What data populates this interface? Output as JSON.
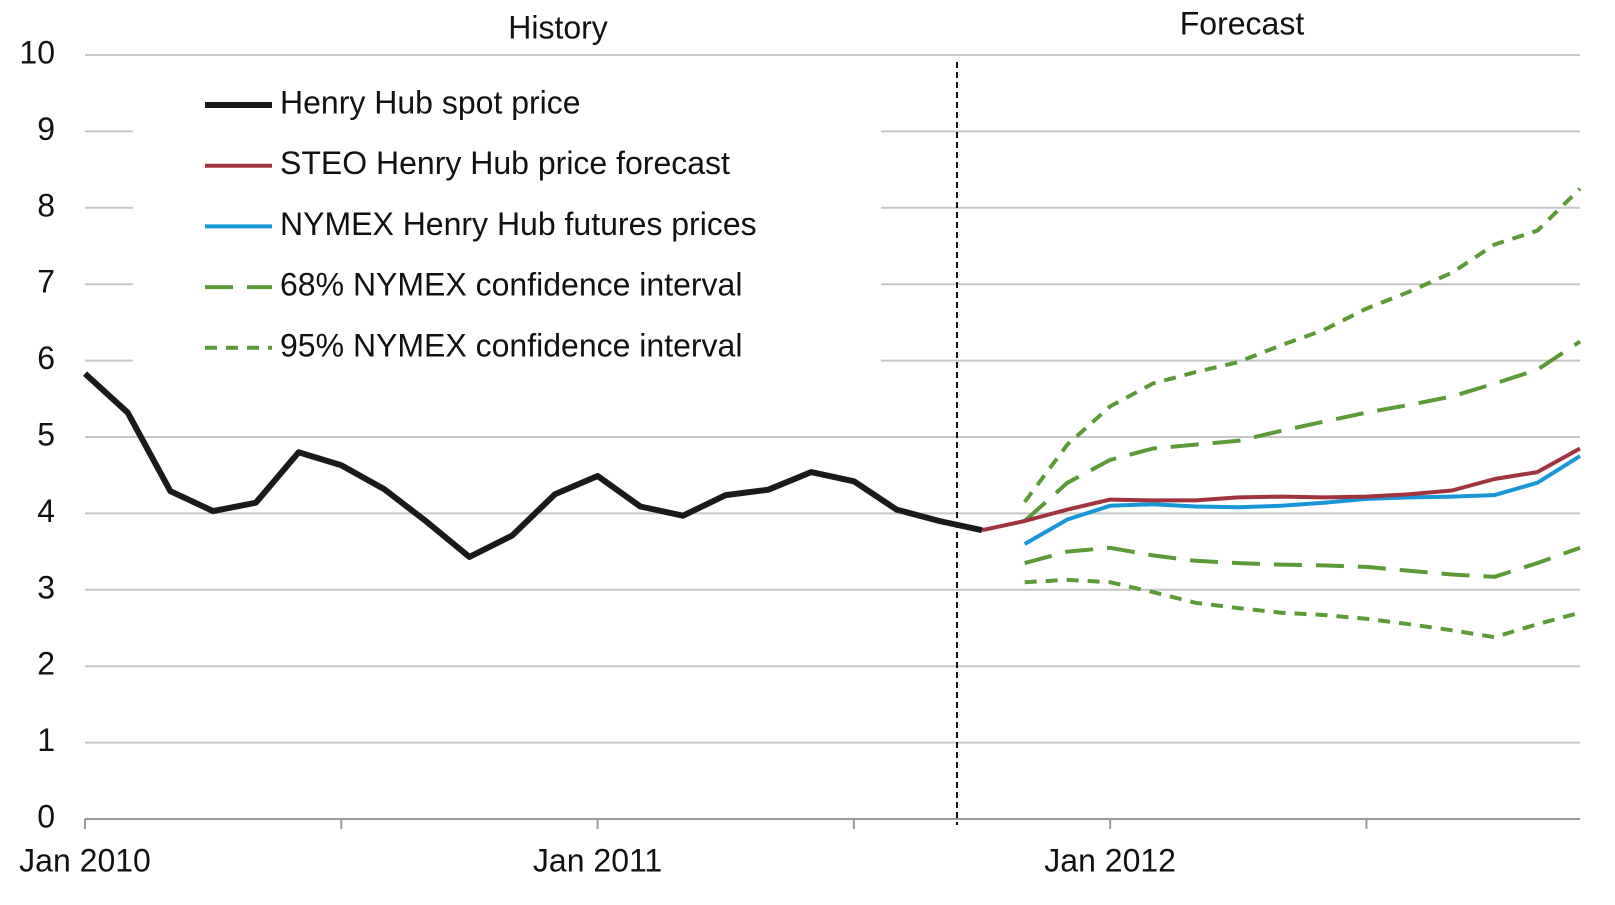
{
  "chart_data": {
    "type": "line",
    "annotations": [
      "History",
      "Forecast"
    ],
    "xlim": [
      "2010-01",
      "2012-12"
    ],
    "xticks": [
      {
        "value": "2010-01",
        "label": "Jan 2010"
      },
      {
        "value": "2011-01",
        "label": "Jan 2011"
      },
      {
        "value": "2012-01",
        "label": "Jan 2012"
      }
    ],
    "xticks_minor": [
      "2010-07",
      "2011-07",
      "2012-07"
    ],
    "ylim": [
      0,
      10
    ],
    "yticks": [
      0,
      1,
      2,
      3,
      4,
      5,
      6,
      7,
      8,
      9,
      10
    ],
    "grid": true,
    "legend": "upper left",
    "series": [
      {
        "name": "Henry Hub spot price",
        "color": "#1a1a1a",
        "dash": "solid",
        "x": [
          "2010-01",
          "2010-02",
          "2010-03",
          "2010-04",
          "2010-05",
          "2010-06",
          "2010-07",
          "2010-08",
          "2010-09",
          "2010-10",
          "2010-11",
          "2010-12",
          "2011-01",
          "2011-02",
          "2011-03",
          "2011-04",
          "2011-05",
          "2011-06",
          "2011-07",
          "2011-08",
          "2011-09",
          "2011-10"
        ],
        "values": [
          5.83,
          5.32,
          4.29,
          4.03,
          4.14,
          4.8,
          4.63,
          4.32,
          3.89,
          3.43,
          3.71,
          4.25,
          4.49,
          4.09,
          3.97,
          4.24,
          4.31,
          4.54,
          4.42,
          4.05,
          3.9,
          3.78
        ]
      },
      {
        "name": "STEO Henry Hub price forecast",
        "color": "#a0333d",
        "dash": "solid",
        "x": [
          "2011-10",
          "2011-11",
          "2011-12",
          "2012-01",
          "2012-02",
          "2012-03",
          "2012-04",
          "2012-05",
          "2012-06",
          "2012-07",
          "2012-08",
          "2012-09",
          "2012-10",
          "2012-11",
          "2012-12"
        ],
        "values": [
          3.78,
          3.9,
          4.05,
          4.18,
          4.17,
          4.17,
          4.21,
          4.22,
          4.21,
          4.22,
          4.25,
          4.3,
          4.45,
          4.54,
          4.85
        ]
      },
      {
        "name": "NYMEX Henry Hub futures prices",
        "color": "#1996d8",
        "dash": "solid",
        "x": [
          "2011-11",
          "2011-12",
          "2012-01",
          "2012-02",
          "2012-03",
          "2012-04",
          "2012-05",
          "2012-06",
          "2012-07",
          "2012-08",
          "2012-09",
          "2012-10",
          "2012-11",
          "2012-12"
        ],
        "values": [
          3.6,
          3.92,
          4.1,
          4.12,
          4.09,
          4.08,
          4.1,
          4.14,
          4.19,
          4.21,
          4.22,
          4.24,
          4.4,
          4.75
        ]
      },
      {
        "name": "68% NYMEX confidence interval",
        "color": "#5b9a36",
        "dash": "long",
        "x": [
          "2011-11",
          "2011-12",
          "2012-01",
          "2012-02",
          "2012-03",
          "2012-04",
          "2012-05",
          "2012-06",
          "2012-07",
          "2012-08",
          "2012-09",
          "2012-10",
          "2012-11",
          "2012-12"
        ],
        "values": [
          3.9,
          4.4,
          4.7,
          4.85,
          4.9,
          4.95,
          5.08,
          5.2,
          5.32,
          5.42,
          5.53,
          5.7,
          5.88,
          6.25
        ],
        "values_lower": [
          3.35,
          3.5,
          3.55,
          3.45,
          3.38,
          3.35,
          3.33,
          3.32,
          3.3,
          3.25,
          3.2,
          3.17,
          3.35,
          3.55
        ]
      },
      {
        "name": "95% NYMEX confidence interval",
        "color": "#5b9a36",
        "dash": "short",
        "x": [
          "2011-11",
          "2011-12",
          "2012-01",
          "2012-02",
          "2012-03",
          "2012-04",
          "2012-05",
          "2012-06",
          "2012-07",
          "2012-08",
          "2012-09",
          "2012-10",
          "2012-11",
          "2012-12"
        ],
        "values": [
          4.15,
          4.9,
          5.4,
          5.7,
          5.85,
          5.98,
          6.2,
          6.4,
          6.68,
          6.9,
          7.15,
          7.52,
          7.7,
          8.25
        ],
        "values_lower": [
          3.1,
          3.13,
          3.1,
          2.97,
          2.83,
          2.76,
          2.7,
          2.67,
          2.62,
          2.55,
          2.47,
          2.38,
          2.55,
          2.7
        ]
      }
    ]
  }
}
